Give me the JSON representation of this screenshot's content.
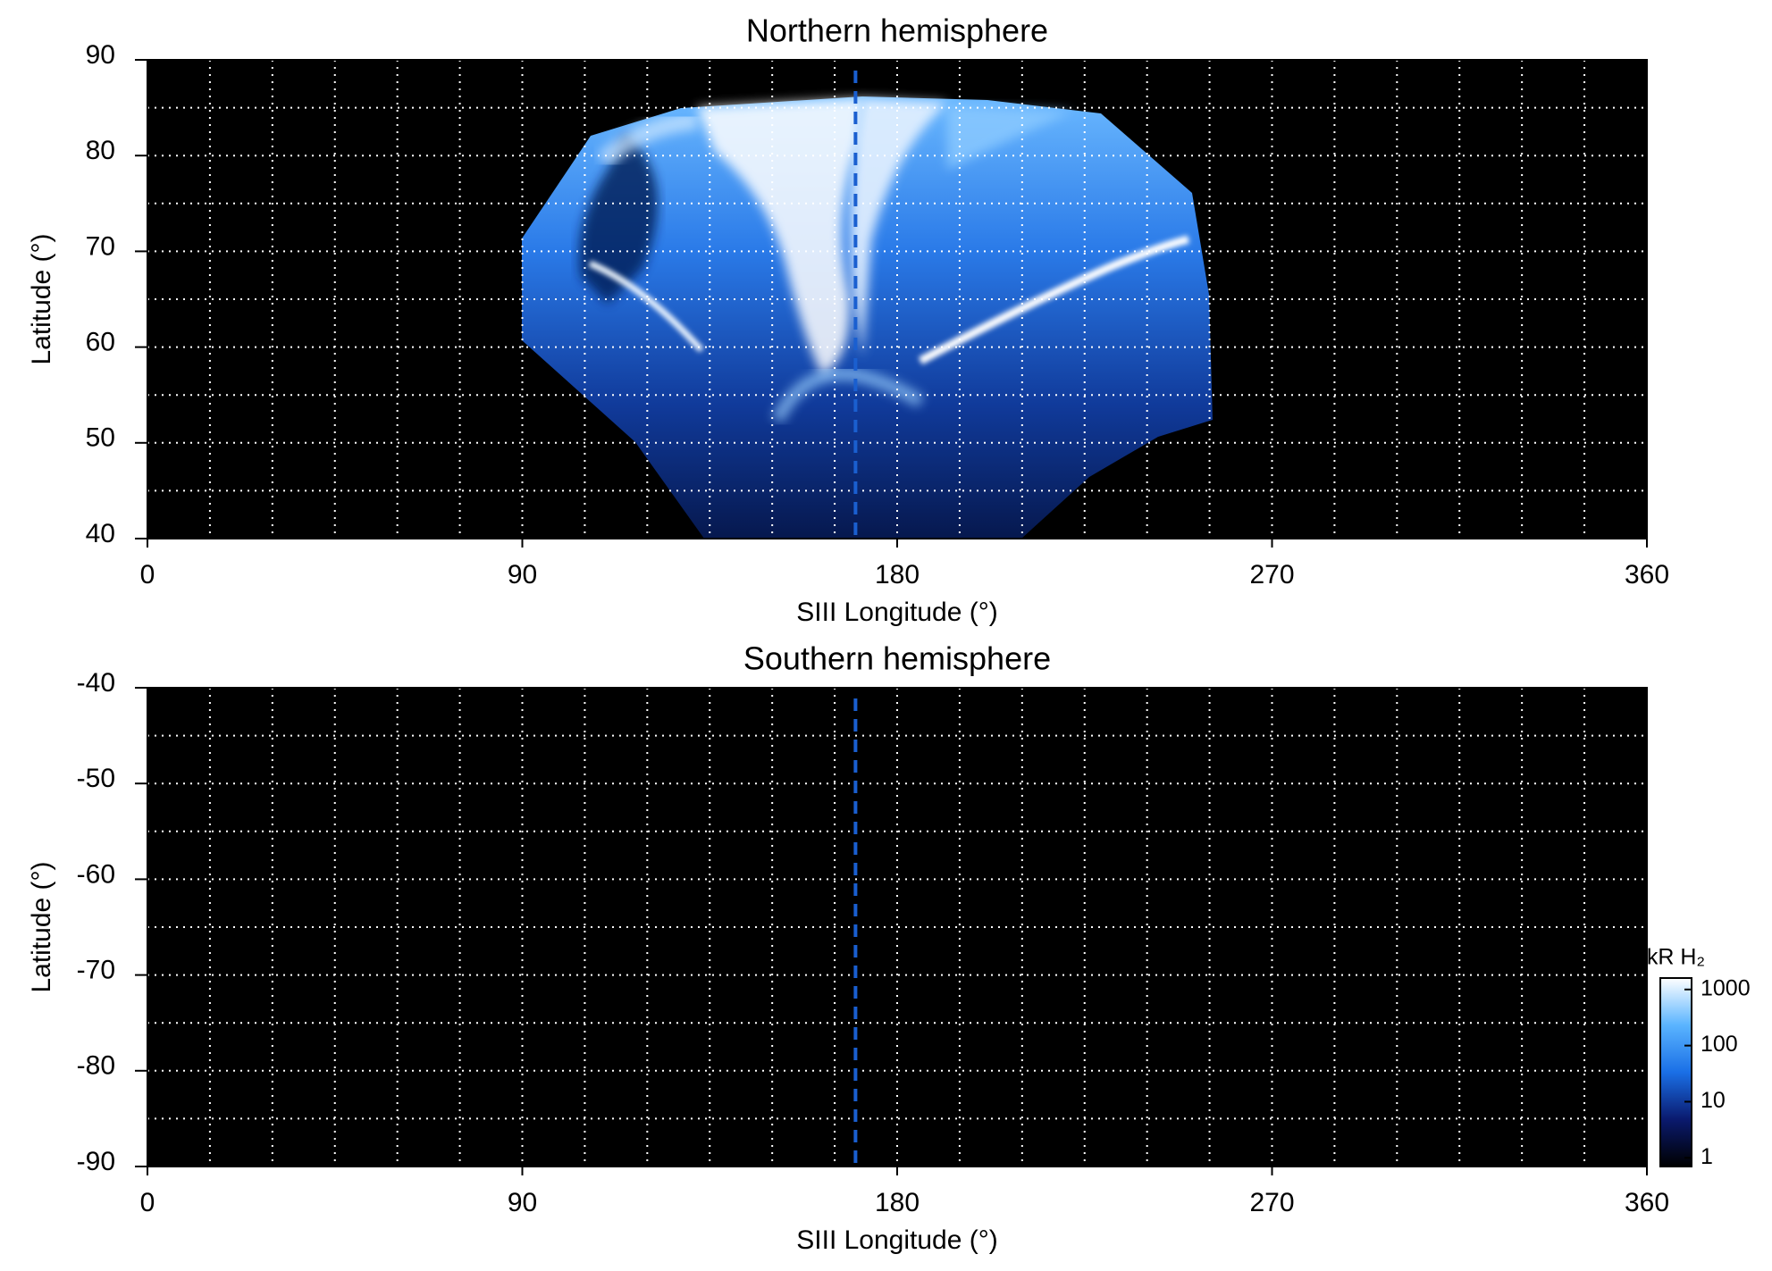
{
  "chart_data": [
    {
      "type": "heatmap",
      "title": "Northern hemisphere",
      "xlabel": "SIII Longitude (°)",
      "ylabel": "Latitude (°)",
      "xlim": [
        0,
        360
      ],
      "ylim": [
        40,
        90
      ],
      "xticks": [
        0,
        90,
        180,
        270,
        360
      ],
      "yticks": [
        40,
        50,
        60,
        70,
        80,
        90
      ],
      "xgrid": [
        15,
        30,
        45,
        60,
        75,
        90,
        105,
        120,
        135,
        150,
        165,
        180,
        195,
        210,
        225,
        240,
        255,
        270,
        285,
        300,
        315,
        330,
        345
      ],
      "ygrid": [
        45,
        50,
        55,
        60,
        65,
        70,
        75,
        80,
        85
      ],
      "vline": 170,
      "vline_color": "#1a5fd0",
      "background": "#000000"
    },
    {
      "type": "heatmap",
      "title": "Southern hemisphere",
      "xlabel": "SIII Longitude (°)",
      "ylabel": "Latitude (°)",
      "xlim": [
        0,
        360
      ],
      "ylim": [
        -90,
        -40
      ],
      "xticks": [
        0,
        90,
        180,
        270,
        360
      ],
      "yticks": [
        -90,
        -80,
        -70,
        -60,
        -50,
        -40
      ],
      "xgrid": [
        15,
        30,
        45,
        60,
        75,
        90,
        105,
        120,
        135,
        150,
        165,
        180,
        195,
        210,
        225,
        240,
        255,
        270,
        285,
        300,
        315,
        330,
        345
      ],
      "ygrid": [
        -85,
        -80,
        -75,
        -70,
        -65,
        -60,
        -55,
        -50,
        -45
      ],
      "vline": 170,
      "vline_color": "#1a5fd0",
      "background": "#000000"
    },
    {
      "type": "colorbar",
      "label": "kR H₂",
      "log": true,
      "clim": [
        0.7,
        1600
      ],
      "ticks": [
        1,
        10,
        100,
        1000
      ],
      "colors": [
        "#000000",
        "#0a1a6e",
        "#1a6fe6",
        "#5ab4ff",
        "#ffffff"
      ]
    }
  ]
}
